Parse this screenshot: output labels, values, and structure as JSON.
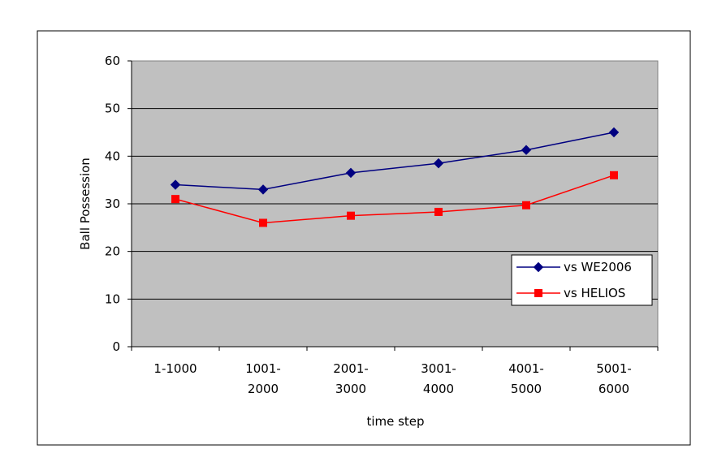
{
  "chart_data": {
    "type": "line",
    "categories": [
      [
        "1-1000"
      ],
      [
        "1001-",
        "2000"
      ],
      [
        "2001-",
        "3000"
      ],
      [
        "3001-",
        "4000"
      ],
      [
        "4001-",
        "5000"
      ],
      [
        "5001-",
        "6000"
      ]
    ],
    "series": [
      {
        "name": "vs WE2006",
        "values": [
          34,
          33,
          36.5,
          38.5,
          41.3,
          45
        ],
        "color": "#000080",
        "marker": "diamond"
      },
      {
        "name": "vs HELIOS",
        "values": [
          31,
          26,
          27.5,
          28.3,
          29.7,
          36
        ],
        "color": "#ff0000",
        "marker": "square"
      }
    ],
    "xlabel": "time step",
    "ylabel": "Ball Possession",
    "ylim": [
      0,
      60
    ],
    "yticks": [
      0,
      10,
      20,
      30,
      40,
      50,
      60
    ],
    "grid": true,
    "legend": "lower-right",
    "plot_background": "#c0c0c0"
  }
}
